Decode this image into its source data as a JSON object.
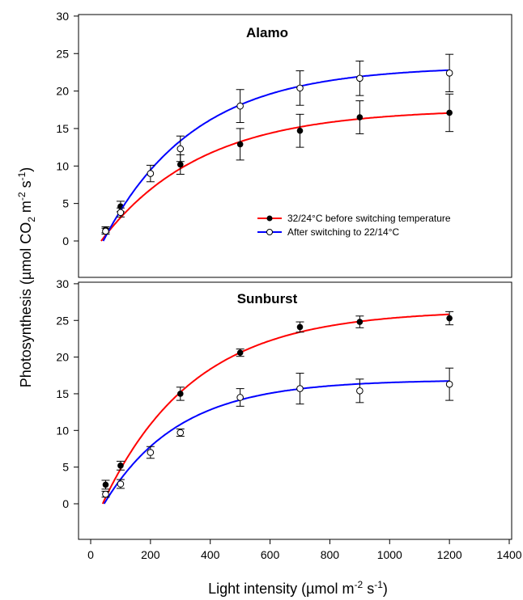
{
  "chart_data": [
    {
      "type": "line",
      "title": "Alamo",
      "xlim": [
        0,
        1400
      ],
      "ylim": [
        0,
        30
      ],
      "xticks": [
        0,
        200,
        400,
        600,
        800,
        1000,
        1200,
        1400
      ],
      "yticks": [
        0,
        5,
        10,
        15,
        20,
        25,
        30
      ],
      "x": [
        50,
        100,
        200,
        300,
        500,
        700,
        900,
        1200
      ],
      "series": [
        {
          "name": "32/24°C before switching temperature",
          "color": "#ff0000",
          "marker": "filled-circle",
          "values": [
            1.5,
            4.6,
            null,
            10.2,
            12.9,
            14.7,
            16.5,
            17.1
          ],
          "errors": [
            0.4,
            0.7,
            null,
            1.3,
            2.1,
            2.2,
            2.2,
            2.5
          ],
          "fit": {
            "x0": 35,
            "plateau": 17.6,
            "k": 0.003
          }
        },
        {
          "name": "After switching to 22/14°C",
          "color": "#0000ff",
          "marker": "open-circle",
          "values": [
            1.3,
            3.8,
            9.0,
            12.3,
            18.0,
            20.4,
            21.7,
            22.4
          ],
          "errors": [
            0.4,
            0.6,
            1.1,
            1.7,
            2.2,
            2.3,
            2.3,
            2.5
          ],
          "fit": {
            "x0": 42,
            "plateau": 23.3,
            "k": 0.0033
          }
        }
      ]
    },
    {
      "type": "line",
      "title": "Sunburst",
      "xlim": [
        0,
        1400
      ],
      "ylim": [
        0,
        30
      ],
      "xticks": [
        0,
        200,
        400,
        600,
        800,
        1000,
        1200,
        1400
      ],
      "yticks": [
        0,
        5,
        10,
        15,
        20,
        25,
        30
      ],
      "x": [
        50,
        100,
        200,
        300,
        500,
        700,
        900,
        1200
      ],
      "series": [
        {
          "name": "32/24°C before switching temperature",
          "color": "#ff0000",
          "marker": "filled-circle",
          "values": [
            2.6,
            5.2,
            null,
            15.0,
            20.6,
            24.1,
            24.8,
            25.3
          ],
          "errors": [
            0.6,
            0.6,
            null,
            0.9,
            0.5,
            0.7,
            0.8,
            0.9
          ],
          "fit": {
            "x0": 40,
            "plateau": 26.4,
            "k": 0.0033
          }
        },
        {
          "name": "After switching to 22/14°C",
          "color": "#0000ff",
          "marker": "open-circle",
          "values": [
            1.3,
            2.7,
            7.0,
            9.7,
            14.5,
            15.7,
            15.4,
            16.3
          ],
          "errors": [
            0.4,
            0.6,
            0.8,
            0.5,
            1.2,
            2.1,
            1.6,
            2.2
          ],
          "fit": {
            "x0": 45,
            "plateau": 16.9,
            "k": 0.004
          }
        }
      ]
    }
  ],
  "labels": {
    "alamo_title": "Alamo",
    "sunburst_title": "Sunburst",
    "legend_red": "32/24°C before switching temperature",
    "legend_blue": "After switching to 22/14°C"
  }
}
